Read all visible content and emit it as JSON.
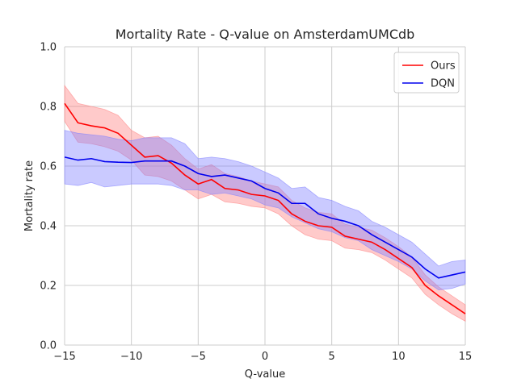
{
  "chart_data": {
    "type": "line",
    "title": "Mortality Rate - Q-value on AmsterdamUMCdb",
    "xlabel": "Q-value",
    "ylabel": "Mortality rate",
    "xlim": [
      -15,
      15
    ],
    "ylim": [
      0.0,
      1.0
    ],
    "xticks": [
      "−15",
      "−10",
      "−5",
      "0",
      "5",
      "10",
      "15"
    ],
    "xtick_values": [
      -15,
      -10,
      -5,
      0,
      5,
      10,
      15
    ],
    "yticks": [
      "0.0",
      "0.2",
      "0.4",
      "0.6",
      "0.8",
      "1.0"
    ],
    "ytick_values": [
      0.0,
      0.2,
      0.4,
      0.6,
      0.8,
      1.0
    ],
    "grid": true,
    "legend_position": "top-right",
    "x": [
      -15,
      -14,
      -13,
      -12,
      -11,
      -10,
      -9,
      -8,
      -7,
      -6,
      -5,
      -4,
      -3,
      -2,
      -1,
      0,
      1,
      2,
      3,
      4,
      5,
      6,
      7,
      8,
      9,
      10,
      11,
      12,
      13,
      14,
      15
    ],
    "series": [
      {
        "name": "Ours",
        "color": "#ff0000",
        "values": [
          0.81,
          0.745,
          0.735,
          0.728,
          0.71,
          0.67,
          0.63,
          0.635,
          0.61,
          0.57,
          0.54,
          0.555,
          0.525,
          0.52,
          0.505,
          0.5,
          0.485,
          0.44,
          0.415,
          0.4,
          0.395,
          0.365,
          0.355,
          0.345,
          0.32,
          0.29,
          0.26,
          0.2,
          0.165,
          0.135,
          0.105
        ],
        "lower": [
          0.75,
          0.68,
          0.675,
          0.665,
          0.65,
          0.62,
          0.57,
          0.565,
          0.55,
          0.52,
          0.49,
          0.505,
          0.48,
          0.475,
          0.465,
          0.46,
          0.44,
          0.4,
          0.37,
          0.355,
          0.35,
          0.325,
          0.32,
          0.31,
          0.285,
          0.255,
          0.225,
          0.17,
          0.135,
          0.105,
          0.08
        ],
        "upper": [
          0.87,
          0.81,
          0.8,
          0.79,
          0.77,
          0.72,
          0.695,
          0.7,
          0.67,
          0.625,
          0.59,
          0.605,
          0.575,
          0.565,
          0.55,
          0.54,
          0.53,
          0.485,
          0.46,
          0.445,
          0.44,
          0.405,
          0.395,
          0.385,
          0.36,
          0.33,
          0.295,
          0.235,
          0.195,
          0.165,
          0.135
        ],
        "band_color": "#ff8080"
      },
      {
        "name": "DQN",
        "color": "#0000ee",
        "values": [
          0.63,
          0.62,
          0.625,
          0.615,
          0.613,
          0.612,
          0.617,
          0.617,
          0.617,
          0.6,
          0.575,
          0.565,
          0.57,
          0.56,
          0.55,
          0.525,
          0.51,
          0.475,
          0.475,
          0.44,
          0.425,
          0.415,
          0.4,
          0.37,
          0.345,
          0.32,
          0.295,
          0.255,
          0.225,
          0.235,
          0.245
        ],
        "lower": [
          0.54,
          0.535,
          0.545,
          0.53,
          0.535,
          0.54,
          0.54,
          0.54,
          0.535,
          0.52,
          0.52,
          0.505,
          0.51,
          0.5,
          0.49,
          0.47,
          0.46,
          0.43,
          0.41,
          0.39,
          0.38,
          0.36,
          0.35,
          0.32,
          0.3,
          0.28,
          0.255,
          0.215,
          0.185,
          0.19,
          0.205
        ],
        "upper": [
          0.72,
          0.71,
          0.705,
          0.7,
          0.69,
          0.685,
          0.695,
          0.695,
          0.695,
          0.675,
          0.625,
          0.63,
          0.625,
          0.615,
          0.6,
          0.58,
          0.56,
          0.525,
          0.53,
          0.495,
          0.485,
          0.465,
          0.45,
          0.415,
          0.395,
          0.37,
          0.345,
          0.305,
          0.265,
          0.28,
          0.285
        ],
        "band_color": "#8080ff"
      }
    ]
  }
}
